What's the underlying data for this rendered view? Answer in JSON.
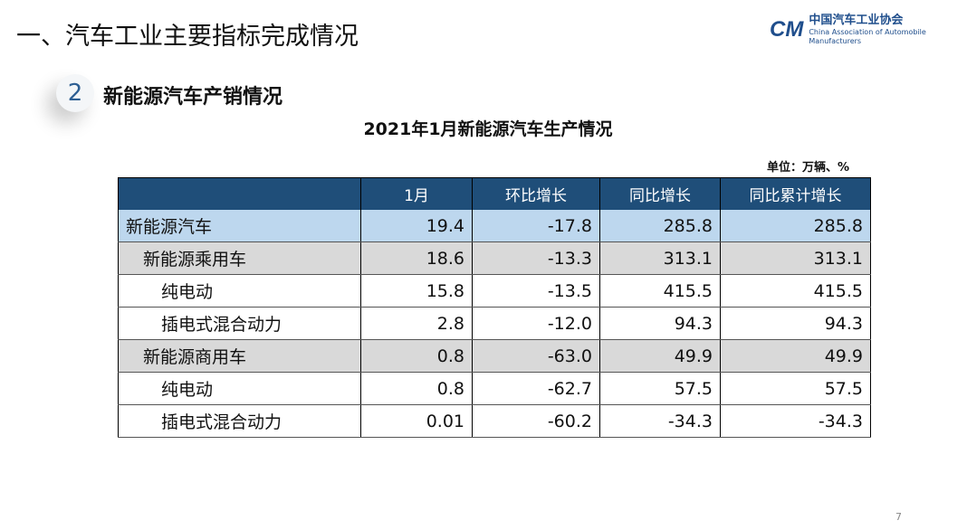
{
  "header": {
    "title": "一、汽车工业主要指标完成情况",
    "logo": {
      "mark": "CAAM",
      "cn": "中国汽车工业协会",
      "en": "China Association of Automobile Manufacturers"
    }
  },
  "section": {
    "number": "2",
    "title": "新能源汽车产销情况"
  },
  "table": {
    "title": "2021年1月新能源汽车生产情况",
    "unit": "单位：万辆、%",
    "columns": [
      "",
      "1月",
      "环比增长",
      "同比增长",
      "同比累计增长"
    ],
    "rows": [
      {
        "level": 0,
        "name": "新能源汽车",
        "values": [
          "19.4",
          "-17.8",
          "285.8",
          "285.8"
        ]
      },
      {
        "level": 1,
        "name": "新能源乘用车",
        "values": [
          "18.6",
          "-13.3",
          "313.1",
          "313.1"
        ]
      },
      {
        "level": 2,
        "name": "纯电动",
        "values": [
          "15.8",
          "-13.5",
          "415.5",
          "415.5"
        ]
      },
      {
        "level": 2,
        "name": "插电式混合动力",
        "values": [
          "2.8",
          "-12.0",
          "94.3",
          "94.3"
        ]
      },
      {
        "level": 1,
        "name": "新能源商用车",
        "values": [
          "0.8",
          "-63.0",
          "49.9",
          "49.9"
        ]
      },
      {
        "level": 2,
        "name": "纯电动",
        "values": [
          "0.8",
          "-62.7",
          "57.5",
          "57.5"
        ]
      },
      {
        "level": 2,
        "name": "插电式混合动力",
        "values": [
          "0.01",
          "-60.2",
          "-34.3",
          "-34.3"
        ]
      }
    ]
  },
  "page_number": "7",
  "colors": {
    "header_bg": "#1f4e79",
    "total_row": "#bdd7ee",
    "subtotal_row": "#d9d9d9"
  }
}
